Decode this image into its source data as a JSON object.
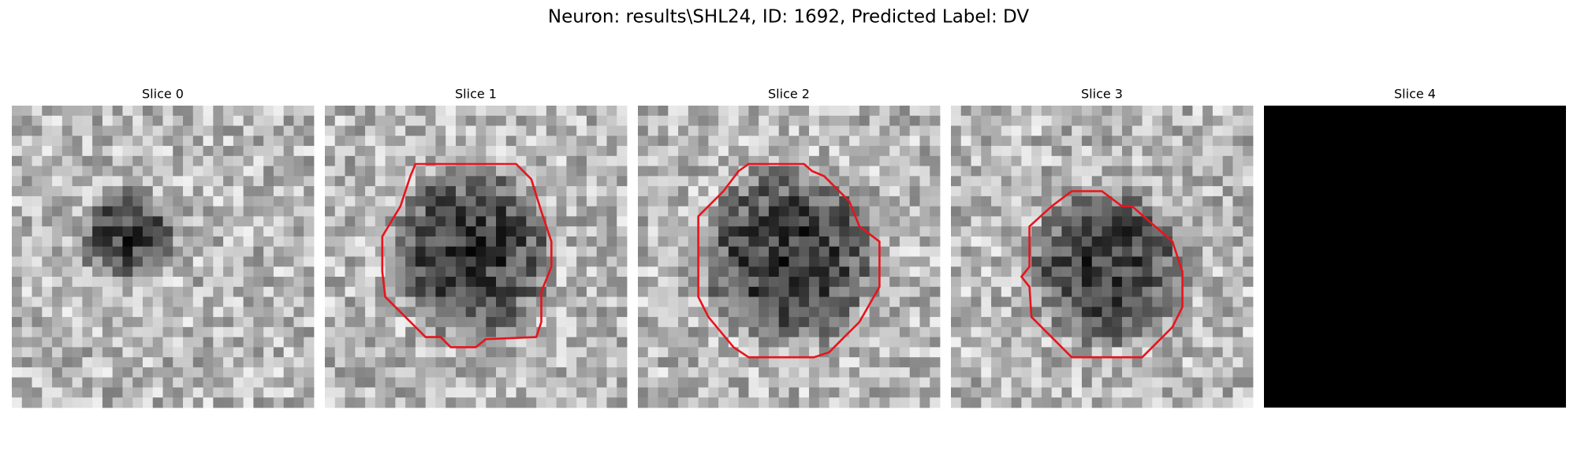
{
  "title": "Neuron: results\\SHL24, ID: 1692, Predicted Label: DV",
  "panels": [
    {
      "title": "Slice 0"
    },
    {
      "title": "Slice 1"
    },
    {
      "title": "Slice 2"
    },
    {
      "title": "Slice 3"
    },
    {
      "title": "Slice 4"
    }
  ]
}
